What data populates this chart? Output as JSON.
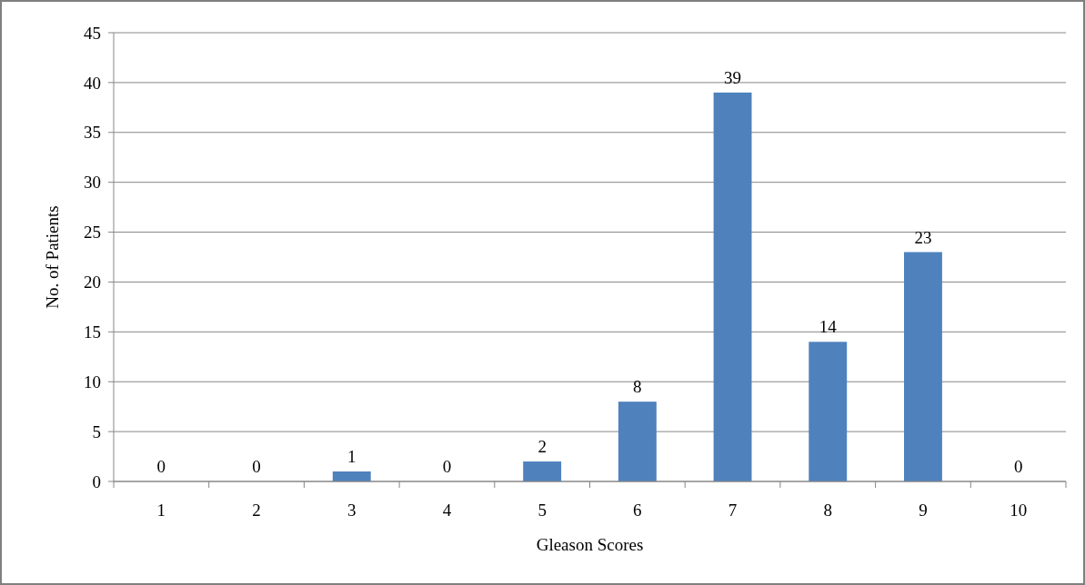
{
  "chart_data": {
    "type": "bar",
    "xlabel": "Gleason Scores",
    "ylabel": "No. of Patients",
    "categories": [
      "1",
      "2",
      "3",
      "4",
      "5",
      "6",
      "7",
      "8",
      "9",
      "10"
    ],
    "values": [
      0,
      0,
      1,
      0,
      2,
      8,
      39,
      14,
      23,
      0
    ],
    "color": "#4f81bd",
    "ylim": [
      0,
      45
    ],
    "yticks": [
      0,
      5,
      10,
      15,
      20,
      25,
      30,
      35,
      40,
      45
    ],
    "grid": "y",
    "data_labels": true
  }
}
